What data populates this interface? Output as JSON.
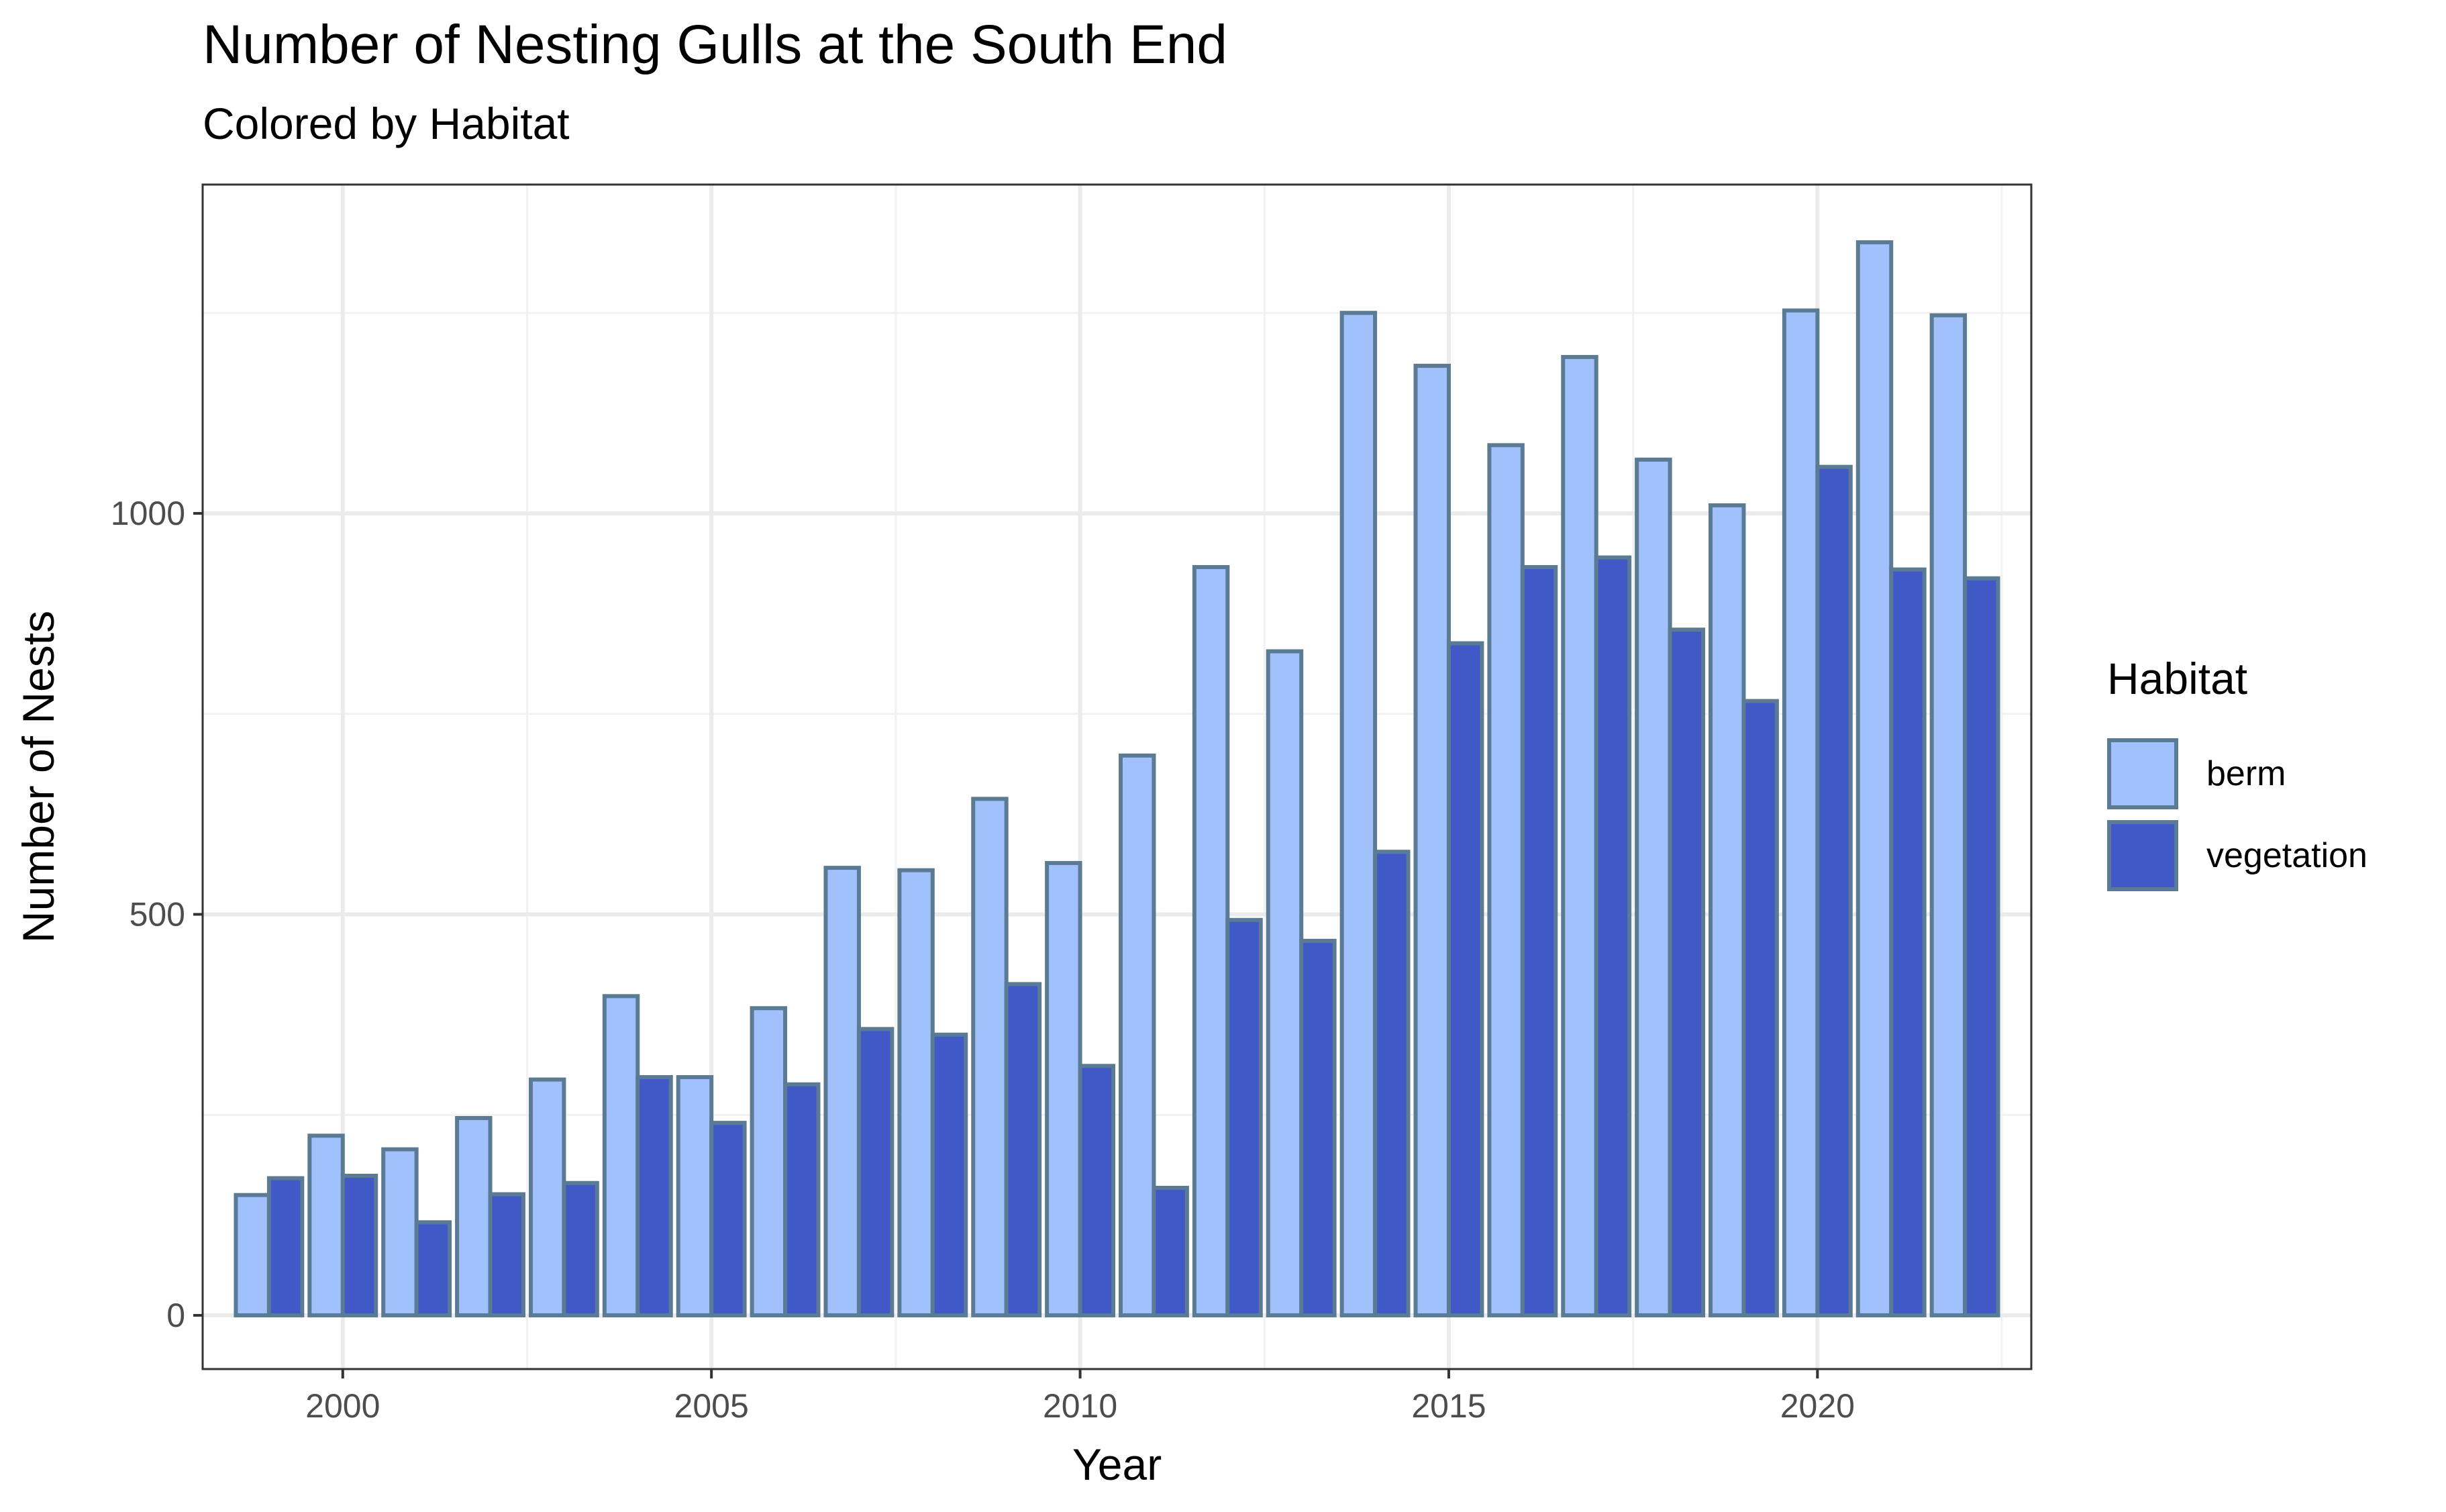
{
  "chart_data": {
    "type": "bar",
    "title": "Number of Nesting Gulls at the South End",
    "subtitle": "Colored by Habitat",
    "xlabel": "Year",
    "ylabel": "Number of Nests",
    "x": [
      1999,
      2000,
      2001,
      2002,
      2003,
      2004,
      2005,
      2006,
      2007,
      2008,
      2009,
      2010,
      2011,
      2012,
      2013,
      2014,
      2015,
      2016,
      2017,
      2018,
      2019,
      2020,
      2021,
      2022
    ],
    "series": [
      {
        "name": "berm",
        "color": "#a0c1fc",
        "values": [
          150,
          224,
          207,
          246,
          294,
          398,
          297,
          383,
          558,
          555,
          644,
          564,
          698,
          933,
          828,
          1250,
          1184,
          1085,
          1195,
          1067,
          1010,
          1253,
          1338,
          1247
        ]
      },
      {
        "name": "vegetation",
        "color": "#4159c7",
        "values": [
          171,
          174,
          116,
          151,
          165,
          297,
          240,
          288,
          357,
          350,
          413,
          311,
          159,
          493,
          467,
          578,
          838,
          933,
          945,
          855,
          766,
          1058,
          930,
          919
        ]
      }
    ],
    "xlim": [
      1998.1,
      2022.9
    ],
    "ylim": [
      -67,
      1410
    ],
    "x_ticks": [
      "2000",
      "2005",
      "2010",
      "2015",
      "2020"
    ],
    "y_ticks": [
      "0",
      "500",
      "1000"
    ],
    "bar_outline_color": "#5b7a94",
    "grid": true,
    "legend": {
      "title": "Habitat",
      "position": "right"
    }
  }
}
